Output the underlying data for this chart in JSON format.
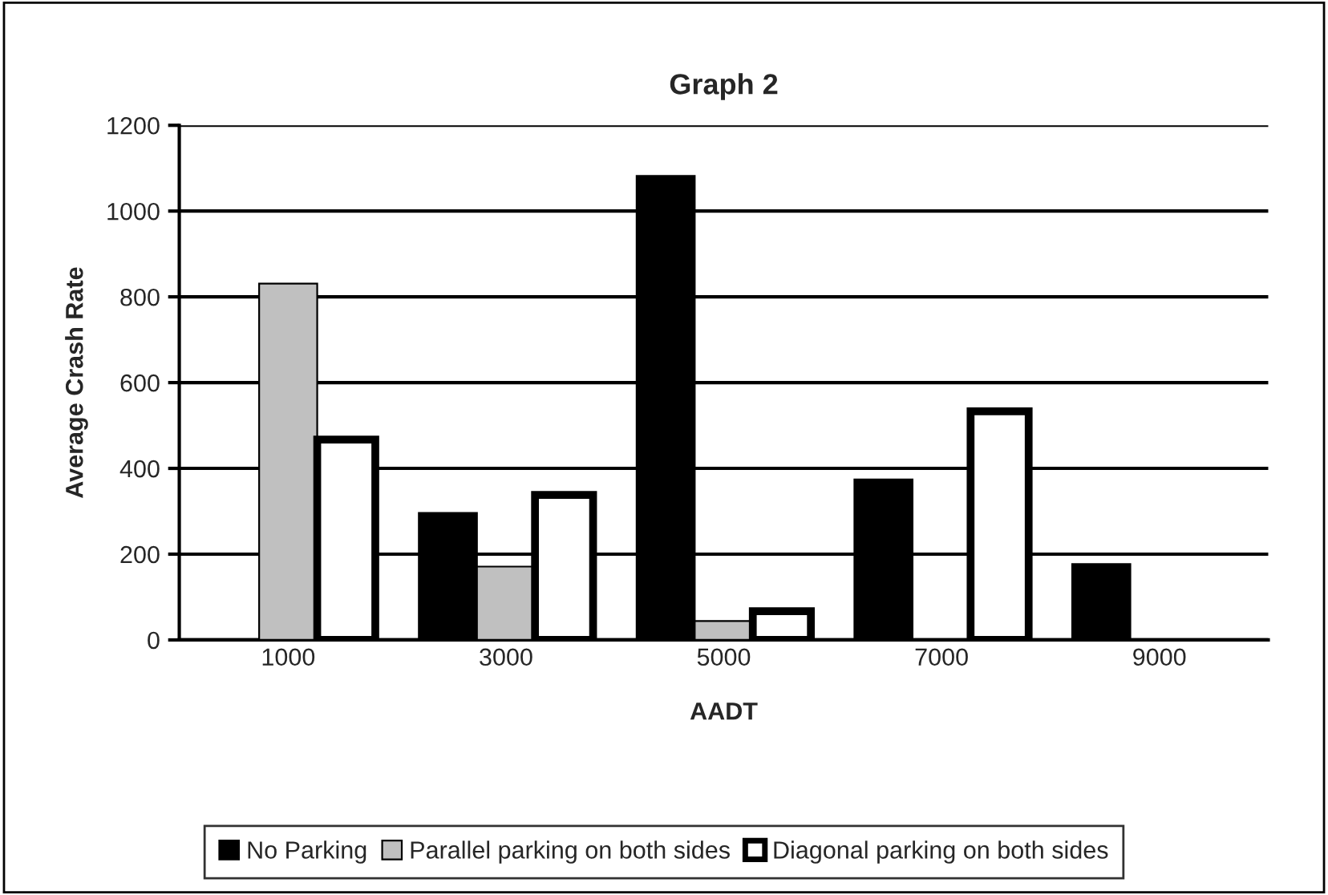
{
  "chart_data": {
    "type": "bar",
    "title": "Graph 2",
    "xlabel": "AADT",
    "ylabel": "Average Crash Rate",
    "categories": [
      "1000",
      "3000",
      "5000",
      "7000",
      "9000"
    ],
    "series": [
      {
        "name": "No Parking",
        "color": "#000000",
        "values": [
          null,
          296,
          1082,
          374,
          177
        ]
      },
      {
        "name": "Parallel parking on both sides",
        "color": "#c0c0c0",
        "values": [
          831,
          171,
          44,
          null,
          null
        ]
      },
      {
        "name": "Diagonal parking on both sides",
        "color": "#ffffff",
        "values": [
          467,
          338,
          67,
          533,
          null
        ]
      }
    ],
    "ylim": [
      0,
      1200
    ],
    "yticks": [
      0,
      200,
      400,
      600,
      800,
      1000,
      1200
    ],
    "grid": "y",
    "legend": "bottom"
  }
}
